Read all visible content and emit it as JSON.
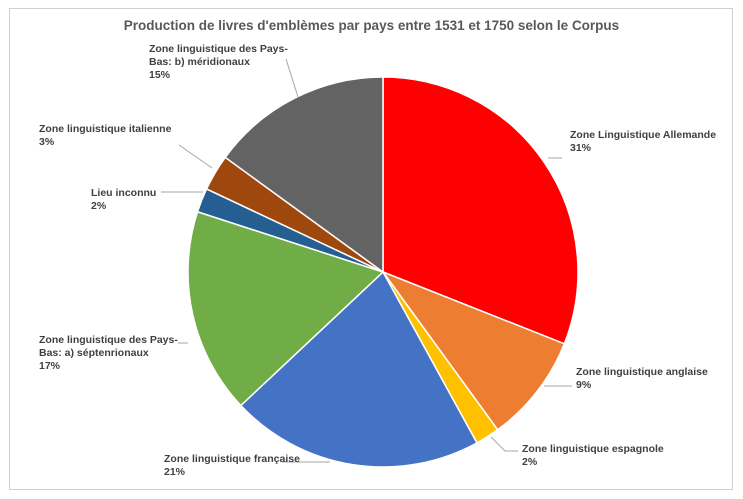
{
  "chart_data": {
    "type": "pie",
    "title": "Production de livres d'emblèmes par pays entre 1531 et 1750 selon le Corpus",
    "start_angle_deg": 0,
    "direction": "clockwise",
    "slices": [
      {
        "label_lines": [
          "Zone Linguistique Allemande"
        ],
        "pct_label": "31%",
        "value": 31,
        "color": "#ff0000"
      },
      {
        "label_lines": [
          "Zone linguistique anglaise"
        ],
        "pct_label": "9%",
        "value": 9,
        "color": "#ed7d31"
      },
      {
        "label_lines": [
          "Zone linguistique espagnole"
        ],
        "pct_label": "2%",
        "value": 2,
        "color": "#ffc000"
      },
      {
        "label_lines": [
          "Zone linguistique française"
        ],
        "pct_label": "21%",
        "value": 21,
        "color": "#4472c4"
      },
      {
        "label_lines": [
          "Zone linguistique des Pays-",
          "Bas: a) séptenrionaux"
        ],
        "pct_label": "17%",
        "value": 17,
        "color": "#70ad47"
      },
      {
        "label_lines": [
          "Lieu inconnu"
        ],
        "pct_label": "2%",
        "value": 2,
        "color": "#255e91"
      },
      {
        "label_lines": [
          "Zone linguistique italienne"
        ],
        "pct_label": "3%",
        "value": 3,
        "color": "#9e480e"
      },
      {
        "label_lines": [
          "Zone linguistique des Pays-",
          "Bas: b) méridionaux"
        ],
        "pct_label": "15%",
        "value": 15,
        "color": "#636363"
      }
    ]
  }
}
